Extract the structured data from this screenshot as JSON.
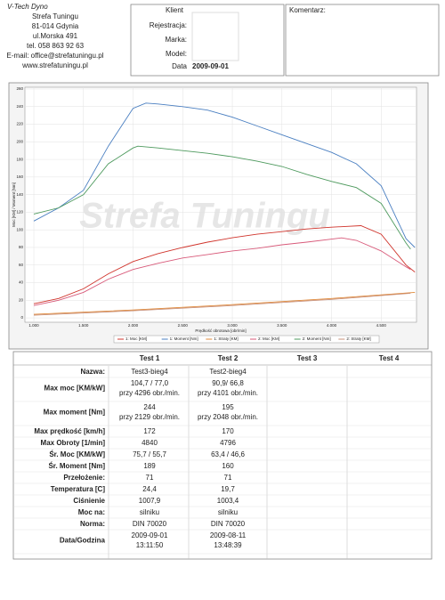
{
  "header": {
    "company": [
      "V-Tech Dyno",
      "Strefa Tuningu",
      "81-014 Gdynia",
      "ul.Morska 491",
      "tel. 058 863 92 63",
      "E-mail: office@strefatuningu.pl",
      "www.strefatuningu.pl"
    ],
    "client_box": {
      "title": "Klient",
      "fields": [
        "Rejestracja:",
        "Marka:",
        "Model:"
      ],
      "date_label": "Data",
      "date": "2009-09-01"
    },
    "comment_label": "Komentarz:"
  },
  "chart_data": {
    "type": "line",
    "watermark": "Strefa Tuningu",
    "x_label": "Prędkość obrotowa [obr/min]",
    "y_label": "Moc [KM] / Moment [Nm]",
    "xlim": [
      910,
      4856
    ],
    "xticks": [
      {
        "value": 1000,
        "label": "1.000"
      },
      {
        "value": 1500,
        "label": "1.500"
      },
      {
        "value": 2000,
        "label": "2.000"
      },
      {
        "value": 2500,
        "label": "2.500"
      },
      {
        "value": 3000,
        "label": "3.000"
      },
      {
        "value": 3500,
        "label": "3.500"
      },
      {
        "value": 4000,
        "label": "4.000"
      },
      {
        "value": 4500,
        "label": "4.500"
      }
    ],
    "ylim": [
      -5,
      262
    ],
    "yticks": [
      0,
      20,
      40,
      60,
      80,
      100,
      120,
      140,
      160,
      180,
      200,
      220,
      240,
      260
    ],
    "grid": true,
    "series": [
      {
        "name": "1: Moc [KM]",
        "color": "#d0342c",
        "x": [
          1000,
          1250,
          1500,
          1750,
          2000,
          2250,
          2500,
          2750,
          3000,
          3250,
          3500,
          3750,
          4000,
          4296,
          4500,
          4750,
          4840
        ],
        "values": [
          16,
          22,
          33,
          50,
          64,
          73,
          80,
          86,
          91,
          95,
          98,
          101,
          103,
          104.7,
          95,
          60,
          52
        ]
      },
      {
        "name": "1: Moment [Nm]",
        "color": "#4a7fc1",
        "x": [
          1000,
          1250,
          1500,
          1750,
          2000,
          2129,
          2250,
          2500,
          2750,
          3000,
          3250,
          3500,
          3750,
          4000,
          4250,
          4500,
          4750,
          4840
        ],
        "values": [
          110,
          125,
          145,
          195,
          238,
          244,
          243,
          240,
          236,
          228,
          218,
          208,
          198,
          188,
          175,
          150,
          90,
          80
        ]
      },
      {
        "name": "1: Straty [KM]",
        "color": "#e08a3a",
        "x": [
          1000,
          2000,
          3000,
          4000,
          4840
        ],
        "values": [
          4,
          9,
          15,
          22,
          29
        ]
      },
      {
        "name": "2: Moc [KM]",
        "color": "#d85a7a",
        "x": [
          1000,
          1250,
          1500,
          1750,
          2000,
          2250,
          2500,
          2750,
          3000,
          3250,
          3500,
          3750,
          4101,
          4250,
          4500,
          4750,
          4796
        ],
        "values": [
          14,
          20,
          29,
          44,
          55,
          62,
          68,
          72,
          76,
          79,
          83,
          86,
          90.9,
          88,
          76,
          58,
          55
        ]
      },
      {
        "name": "2: Moment [Nm]",
        "color": "#4e9a5e",
        "x": [
          1000,
          1250,
          1500,
          1750,
          2000,
          2048,
          2250,
          2500,
          2750,
          3000,
          3250,
          3500,
          3750,
          4000,
          4250,
          4500,
          4750,
          4796
        ],
        "values": [
          118,
          125,
          140,
          175,
          193,
          195,
          193,
          190,
          187,
          183,
          178,
          172,
          163,
          155,
          148,
          130,
          85,
          78
        ]
      },
      {
        "name": "2: Straty [KM]",
        "color": "#c8907a",
        "x": [
          1000,
          2000,
          3000,
          4000,
          4796
        ],
        "values": [
          3,
          8,
          14,
          21,
          28
        ]
      }
    ]
  },
  "table": {
    "columns": [
      "Test 1",
      "Test 2",
      "Test 3",
      "Test 4"
    ],
    "rows": [
      {
        "label": "Nazwa:",
        "cells": [
          [
            "Test3-bieg4"
          ],
          [
            "Test2-bieg4"
          ]
        ]
      },
      {
        "label": "Max moc [KM/kW]",
        "cells": [
          [
            "104,7 / 77,0",
            "przy 4296 obr./min."
          ],
          [
            "90,9/ 66,8",
            "przy 4101 obr./min."
          ]
        ]
      },
      {
        "label": "Max moment [Nm]",
        "cells": [
          [
            "244",
            "przy 2129 obr./min."
          ],
          [
            "195",
            "przy 2048 obr./min."
          ]
        ]
      },
      {
        "label": "Max prędkość [km/h]",
        "cells": [
          [
            "172"
          ],
          [
            "170"
          ]
        ]
      },
      {
        "label": "Max Obroty [1/min]",
        "cells": [
          [
            "4840"
          ],
          [
            "4796"
          ]
        ]
      },
      {
        "label": "Śr. Moc [KM/kW]",
        "cells": [
          [
            "75,7 / 55,7"
          ],
          [
            "63,4 / 46,6"
          ]
        ]
      },
      {
        "label": "Śr. Moment [Nm]",
        "cells": [
          [
            "189"
          ],
          [
            "160"
          ]
        ]
      },
      {
        "label": "Przełożenie:",
        "cells": [
          [
            "71"
          ],
          [
            "71"
          ]
        ]
      },
      {
        "label": "Temperatura [C]",
        "cells": [
          [
            "24,4"
          ],
          [
            "19,7"
          ]
        ]
      },
      {
        "label": "Ciśnienie",
        "cells": [
          [
            "1007,9"
          ],
          [
            "1003,4"
          ]
        ]
      },
      {
        "label": "Moc na:",
        "cells": [
          [
            "silniku"
          ],
          [
            "silniku"
          ]
        ]
      },
      {
        "label": "Norma:",
        "cells": [
          [
            "DIN 70020"
          ],
          [
            "DIN 70020"
          ]
        ]
      },
      {
        "label": "Data/Godzina",
        "cells": [
          [
            "2009-09-01",
            "13:11:50"
          ],
          [
            "2009-08-11",
            "13:48:39"
          ]
        ]
      }
    ]
  }
}
